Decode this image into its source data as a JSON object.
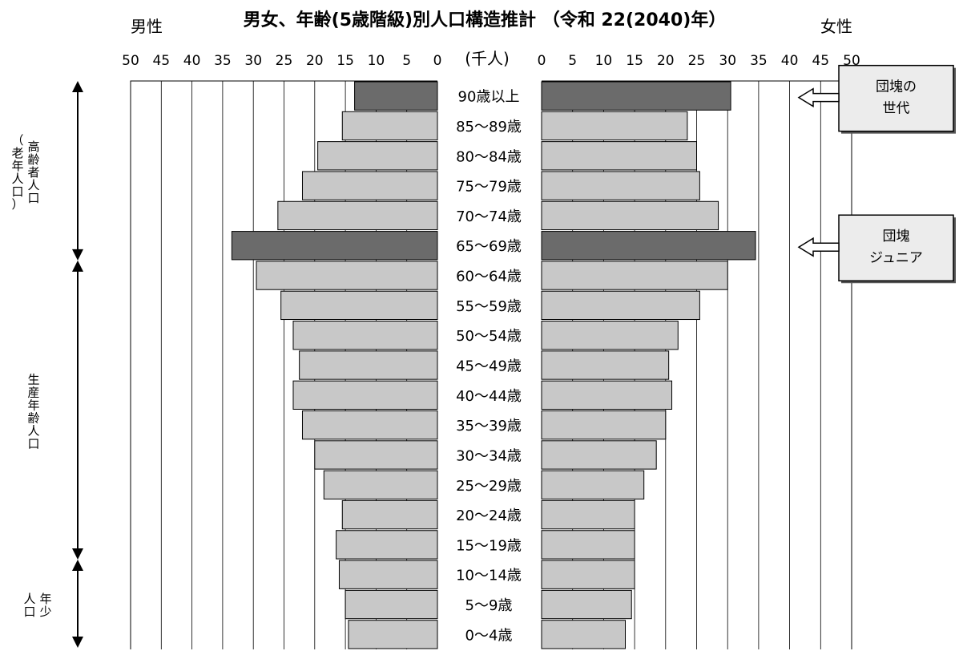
{
  "chart_data": {
    "type": "bar",
    "orientation": "horizontal",
    "layout": "population-pyramid",
    "title": "男女、年齢(5歳階級)別人口構造推計 （令和 22(2040)年）",
    "unit_label": "(千人)",
    "left_label": "男性",
    "right_label": "女性",
    "xlim": [
      0,
      50
    ],
    "ticks": [
      50,
      45,
      40,
      35,
      30,
      25,
      20,
      15,
      10,
      5,
      0
    ],
    "right_ticks": [
      0,
      5,
      10,
      15,
      20,
      25,
      30,
      35,
      40,
      45,
      50
    ],
    "grid": true,
    "categories": [
      "90歳以上",
      "85〜89歳",
      "80〜84歳",
      "75〜79歳",
      "70〜74歳",
      "65〜69歳",
      "60〜64歳",
      "55〜59歳",
      "50〜54歳",
      "45〜49歳",
      "40〜44歳",
      "35〜39歳",
      "30〜34歳",
      "25〜29歳",
      "20〜24歳",
      "15〜19歳",
      "10〜14歳",
      "5〜9歳",
      "0〜4歳"
    ],
    "series": [
      {
        "name": "男性",
        "values": [
          13.5,
          15.5,
          19.5,
          22,
          26,
          33.5,
          29.5,
          25.5,
          23.5,
          22.5,
          23.5,
          22,
          20,
          18.5,
          15.5,
          16.5,
          16,
          15,
          14.5
        ]
      },
      {
        "name": "女性",
        "values": [
          30.5,
          23.5,
          25,
          25.5,
          28.5,
          34.5,
          30,
          25.5,
          22,
          20.5,
          21,
          20,
          18.5,
          16.5,
          15,
          15,
          15,
          14.5,
          13.5
        ]
      }
    ],
    "highlight_categories": [
      "90歳以上",
      "65〜69歳"
    ],
    "colors": {
      "normal": "#c8c8c8",
      "highlight": "#6b6b6b",
      "grid": "#000000"
    },
    "callouts": [
      {
        "text": "団塊の\n世代",
        "category": "90歳以上"
      },
      {
        "text": "団塊\nジュニア",
        "category": "65〜69歳"
      }
    ],
    "age_groups": [
      {
        "label": "高齢者人口",
        "sub": "（老年人口）",
        "from": "90歳以上",
        "to": "65〜69歳"
      },
      {
        "label": "生産年齢人口",
        "sub": "",
        "from": "60〜64歳",
        "to": "15〜19歳"
      },
      {
        "label": "年少人口",
        "sub": "",
        "from": "10〜14歳",
        "to": "0〜4歳"
      }
    ]
  }
}
